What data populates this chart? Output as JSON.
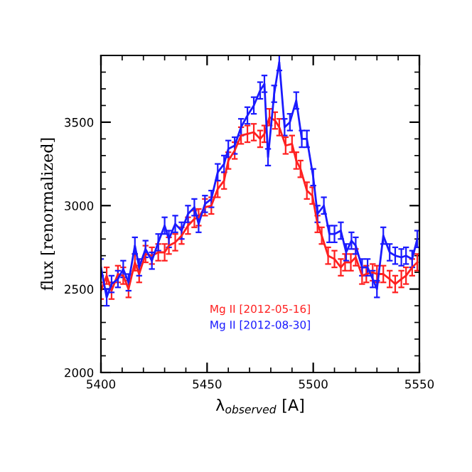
{
  "chart_data": {
    "type": "line",
    "xlabel": "λ$_{observed}$ [A]",
    "ylabel": "flux [renormalized]",
    "xlim": [
      5400,
      5550
    ],
    "ylim": [
      2000,
      3900
    ],
    "xticks": [
      5400,
      5450,
      5500,
      5550
    ],
    "yticks": [
      2000,
      2500,
      3000,
      3500
    ],
    "grid": false,
    "legend": "bottom",
    "marker": "none",
    "line_style": "solid",
    "series": [
      {
        "name": "Mg II [2012-05-16]",
        "color": "#ff2020",
        "x": [
          5400,
          5402.7,
          5405,
          5408,
          5410.5,
          5413,
          5416,
          5418,
          5421,
          5424,
          5427,
          5430,
          5432,
          5435,
          5438,
          5441,
          5444,
          5446,
          5449,
          5452,
          5455,
          5458,
          5460,
          5463,
          5466,
          5469,
          5472,
          5475,
          5477,
          5479.4,
          5482,
          5484,
          5487,
          5490,
          5492,
          5494,
          5497,
          5499.6,
          5502,
          5504,
          5507,
          5510,
          5513,
          5515,
          5517.7,
          5520,
          5523,
          5525,
          5528,
          5530,
          5533,
          5536,
          5538.6,
          5541.5,
          5543.7,
          5546.6,
          5549
        ],
        "values": [
          2490,
          2580,
          2490,
          2590,
          2580,
          2500,
          2660,
          2590,
          2710,
          2700,
          2720,
          2720,
          2760,
          2780,
          2820,
          2880,
          2920,
          2930,
          2990,
          3000,
          3100,
          3150,
          3270,
          3330,
          3420,
          3430,
          3440,
          3400,
          3430,
          3530,
          3510,
          3470,
          3360,
          3370,
          3270,
          3220,
          3090,
          3060,
          2890,
          2820,
          2700,
          2680,
          2630,
          2660,
          2660,
          2690,
          2580,
          2590,
          2600,
          2590,
          2590,
          2560,
          2530,
          2560,
          2580,
          2630,
          2660
        ],
        "errors": [
          50,
          50,
          50,
          50,
          50,
          50,
          50,
          50,
          50,
          50,
          50,
          50,
          50,
          50,
          50,
          50,
          50,
          50,
          50,
          50,
          50,
          50,
          50,
          50,
          50,
          50,
          50,
          50,
          50,
          50,
          50,
          50,
          50,
          50,
          50,
          50,
          50,
          50,
          50,
          50,
          50,
          50,
          50,
          50,
          50,
          50,
          50,
          50,
          50,
          50,
          50,
          50,
          50,
          50,
          50,
          50,
          50
        ]
      },
      {
        "name": "Mg II [2012-08-30]",
        "color": "#1a1aff",
        "x": [
          5400,
          5402.7,
          5405,
          5408,
          5410.5,
          5413,
          5416,
          5418,
          5421,
          5424,
          5427,
          5430,
          5432,
          5435,
          5438,
          5441,
          5444,
          5446,
          5449,
          5452,
          5455,
          5458,
          5460,
          5463,
          5466,
          5469,
          5472,
          5475,
          5477,
          5478.7,
          5481.6,
          5484,
          5486.5,
          5489,
          5492,
          5494.6,
          5497,
          5500,
          5502,
          5505,
          5507.6,
          5510,
          5513,
          5515.5,
          5518,
          5520,
          5523,
          5525.6,
          5528,
          5530,
          5533,
          5536,
          5538.6,
          5541.5,
          5543.7,
          5546.6,
          5549
        ],
        "values": [
          2630,
          2450,
          2530,
          2560,
          2620,
          2540,
          2760,
          2630,
          2740,
          2670,
          2780,
          2880,
          2800,
          2890,
          2850,
          2950,
          2990,
          2890,
          3010,
          3040,
          3200,
          3250,
          3340,
          3360,
          3470,
          3540,
          3600,
          3690,
          3730,
          3290,
          3670,
          3860,
          3470,
          3500,
          3630,
          3400,
          3400,
          3170,
          2950,
          3000,
          2830,
          2830,
          2850,
          2720,
          2790,
          2760,
          2630,
          2630,
          2560,
          2500,
          2820,
          2720,
          2700,
          2690,
          2700,
          2680,
          2800
        ],
        "errors": [
          50,
          50,
          50,
          50,
          50,
          50,
          50,
          50,
          50,
          50,
          50,
          50,
          50,
          50,
          50,
          50,
          50,
          50,
          50,
          50,
          50,
          50,
          50,
          50,
          50,
          50,
          50,
          50,
          50,
          50,
          50,
          50,
          50,
          50,
          50,
          50,
          50,
          50,
          50,
          50,
          50,
          50,
          50,
          50,
          50,
          50,
          50,
          50,
          50,
          50,
          50,
          50,
          50,
          50,
          50,
          50,
          50
        ]
      }
    ]
  }
}
